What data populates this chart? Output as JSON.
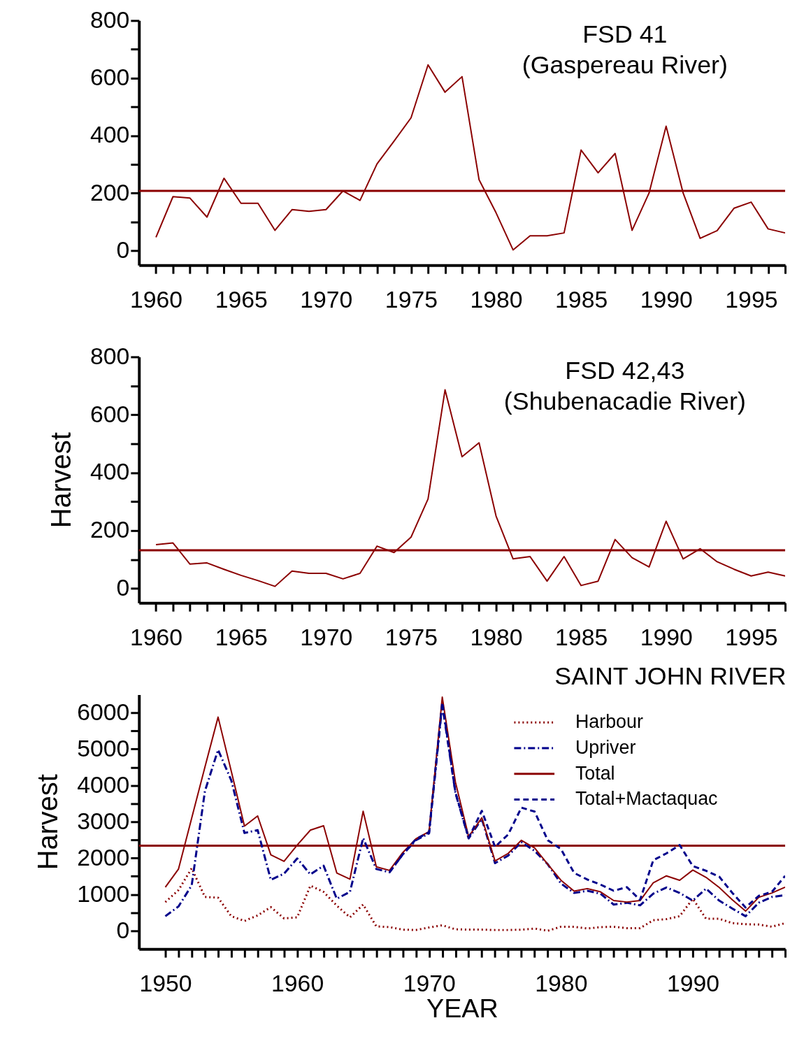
{
  "chart_data": [
    {
      "type": "line",
      "title": "FSD 41\n(Gaspereau River)",
      "x": [
        1960,
        1961,
        1962,
        1963,
        1964,
        1965,
        1966,
        1967,
        1968,
        1969,
        1970,
        1971,
        1972,
        1973,
        1974,
        1975,
        1976,
        1977,
        1978,
        1979,
        1980,
        1981,
        1982,
        1983,
        1984,
        1985,
        1986,
        1987,
        1988,
        1989,
        1990,
        1991,
        1992,
        1993,
        1994,
        1995,
        1996,
        1997
      ],
      "series": [
        {
          "color": "#8b0000",
          "line_style": "solid",
          "values": [
            47,
            188,
            183,
            117,
            252,
            165,
            165,
            71,
            143,
            137,
            143,
            208,
            175,
            302,
            381,
            462,
            646,
            551,
            605,
            247,
            132,
            3,
            52,
            52,
            62,
            350,
            271,
            338,
            71,
            201,
            433,
            201,
            43,
            70,
            148,
            169,
            76,
            62
          ]
        }
      ],
      "xlim": [
        1959,
        1997
      ],
      "ylim": [
        -50,
        800
      ],
      "xticks": [
        1960,
        {
          "value": 1961,
          "label": null
        },
        {
          "value": 1962,
          "label": null
        },
        {
          "value": 1963,
          "label": null
        },
        {
          "value": 1964,
          "label": null
        },
        1965,
        {
          "value": 1966,
          "label": null
        },
        {
          "value": 1967,
          "label": null
        },
        {
          "value": 1968,
          "label": null
        },
        {
          "value": 1969,
          "label": null
        },
        1970,
        {
          "value": 1971,
          "label": null
        },
        {
          "value": 1972,
          "label": null
        },
        {
          "value": 1973,
          "label": null
        },
        {
          "value": 1974,
          "label": null
        },
        1975,
        {
          "value": 1976,
          "label": null
        },
        {
          "value": 1977,
          "label": null
        },
        {
          "value": 1978,
          "label": null
        },
        {
          "value": 1979,
          "label": null
        },
        1980,
        {
          "value": 1981,
          "label": null
        },
        {
          "value": 1982,
          "label": null
        },
        {
          "value": 1983,
          "label": null
        },
        {
          "value": 1984,
          "label": null
        },
        1985,
        {
          "value": 1986,
          "label": null
        },
        {
          "value": 1987,
          "label": null
        },
        {
          "value": 1988,
          "label": null
        },
        {
          "value": 1989,
          "label": null
        },
        1990,
        {
          "value": 1991,
          "label": null
        },
        {
          "value": 1992,
          "label": null
        },
        {
          "value": 1993,
          "label": null
        },
        {
          "value": 1994,
          "label": null
        },
        1995,
        {
          "value": 1996,
          "label": null
        },
        {
          "value": 1997,
          "label": null
        }
      ],
      "yticks": [
        0,
        {
          "value": 100,
          "label": null
        },
        200,
        {
          "value": 300,
          "label": null
        },
        400,
        {
          "value": 500,
          "label": null
        },
        600,
        {
          "value": 700,
          "label": null
        },
        800
      ],
      "ref_lines": [
        {
          "axis": "y",
          "value": 208,
          "color": "#8b0000"
        }
      ],
      "grid": false,
      "legend": false
    },
    {
      "type": "line",
      "title": "FSD 42,43\n(Shubenacadie River)",
      "ylabel": "Harvest",
      "x": [
        1960,
        1961,
        1962,
        1963,
        1964,
        1965,
        1966,
        1967,
        1968,
        1969,
        1970,
        1971,
        1972,
        1973,
        1974,
        1975,
        1976,
        1977,
        1978,
        1979,
        1980,
        1981,
        1982,
        1983,
        1984,
        1985,
        1986,
        1987,
        1988,
        1989,
        1990,
        1991,
        1992,
        1993,
        1994,
        1995,
        1996,
        1997
      ],
      "series": [
        {
          "color": "#8b0000",
          "line_style": "solid",
          "values": [
            151,
            157,
            84,
            88,
            66,
            45,
            27,
            7,
            60,
            52,
            52,
            33,
            52,
            146,
            124,
            177,
            309,
            686,
            455,
            503,
            250,
            102,
            110,
            25,
            110,
            10,
            25,
            169,
            106,
            74,
            232,
            102,
            137,
            92,
            66,
            43,
            56,
            43
          ]
        }
      ],
      "xlim": [
        1959,
        1997
      ],
      "ylim": [
        -50,
        800
      ],
      "xticks": [
        1960,
        {
          "value": 1961,
          "label": null
        },
        {
          "value": 1962,
          "label": null
        },
        {
          "value": 1963,
          "label": null
        },
        {
          "value": 1964,
          "label": null
        },
        1965,
        {
          "value": 1966,
          "label": null
        },
        {
          "value": 1967,
          "label": null
        },
        {
          "value": 1968,
          "label": null
        },
        {
          "value": 1969,
          "label": null
        },
        1970,
        {
          "value": 1971,
          "label": null
        },
        {
          "value": 1972,
          "label": null
        },
        {
          "value": 1973,
          "label": null
        },
        {
          "value": 1974,
          "label": null
        },
        1975,
        {
          "value": 1976,
          "label": null
        },
        {
          "value": 1977,
          "label": null
        },
        {
          "value": 1978,
          "label": null
        },
        {
          "value": 1979,
          "label": null
        },
        1980,
        {
          "value": 1981,
          "label": null
        },
        {
          "value": 1982,
          "label": null
        },
        {
          "value": 1983,
          "label": null
        },
        {
          "value": 1984,
          "label": null
        },
        1985,
        {
          "value": 1986,
          "label": null
        },
        {
          "value": 1987,
          "label": null
        },
        {
          "value": 1988,
          "label": null
        },
        {
          "value": 1989,
          "label": null
        },
        1990,
        {
          "value": 1991,
          "label": null
        },
        {
          "value": 1992,
          "label": null
        },
        {
          "value": 1993,
          "label": null
        },
        {
          "value": 1994,
          "label": null
        },
        1995,
        {
          "value": 1996,
          "label": null
        },
        {
          "value": 1997,
          "label": null
        }
      ],
      "yticks": [
        0,
        {
          "value": 100,
          "label": null
        },
        200,
        {
          "value": 300,
          "label": null
        },
        400,
        {
          "value": 500,
          "label": null
        },
        600,
        {
          "value": 700,
          "label": null
        },
        800
      ],
      "ref_lines": [
        {
          "axis": "y",
          "value": 132,
          "color": "#8b0000"
        }
      ],
      "grid": false,
      "legend": false
    },
    {
      "type": "line",
      "title": "SAINT JOHN RIVER",
      "xlabel": "YEAR",
      "ylabel": "Harvest",
      "x": [
        1950,
        1951,
        1952,
        1953,
        1954,
        1955,
        1956,
        1957,
        1958,
        1959,
        1960,
        1961,
        1962,
        1963,
        1964,
        1965,
        1966,
        1967,
        1968,
        1969,
        1970,
        1971,
        1972,
        1973,
        1974,
        1975,
        1976,
        1977,
        1978,
        1979,
        1980,
        1981,
        1982,
        1983,
        1984,
        1985,
        1986,
        1987,
        1988,
        1989,
        1990,
        1991,
        1992,
        1993,
        1994,
        1995,
        1996,
        1997
      ],
      "series": [
        {
          "name": "Harbour",
          "color": "#8b0000",
          "line_style": "dotted",
          "values": [
            790,
            1120,
            1720,
            930,
            910,
            400,
            270,
            420,
            650,
            340,
            370,
            1240,
            1070,
            690,
            370,
            720,
            120,
            100,
            30,
            20,
            90,
            150,
            40,
            30,
            30,
            20,
            20,
            30,
            60,
            0,
            110,
            110,
            60,
            100,
            110,
            70,
            70,
            290,
            320,
            400,
            880,
            330,
            330,
            210,
            180,
            170,
            110,
            210
          ]
        },
        {
          "name": "Upriver",
          "color": "#00008b",
          "line_style": "dashdot",
          "values": [
            400,
            670,
            1250,
            3840,
            4980,
            4140,
            2690,
            2770,
            1400,
            1570,
            1990,
            1550,
            1790,
            880,
            1070,
            2550,
            1700,
            1610,
            2100,
            2490,
            2680,
            6220,
            3790,
            2540,
            3080,
            1860,
            2070,
            2440,
            2200,
            1830,
            1300,
            1040,
            1100,
            1020,
            720,
            770,
            700,
            1020,
            1190,
            1040,
            830,
            1160,
            830,
            610,
            400,
            770,
            930,
            980
          ]
        },
        {
          "name": "Total",
          "color": "#8b0000",
          "line_style": "solid",
          "values": [
            1200,
            1700,
            3100,
            4500,
            5880,
            4390,
            2880,
            3160,
            2090,
            1910,
            2360,
            2770,
            2890,
            1590,
            1420,
            3290,
            1760,
            1660,
            2150,
            2530,
            2730,
            6430,
            4090,
            2590,
            3110,
            1920,
            2130,
            2490,
            2280,
            1830,
            1390,
            1090,
            1160,
            1070,
            830,
            790,
            830,
            1320,
            1510,
            1390,
            1670,
            1470,
            1190,
            850,
            540,
            920,
            1040,
            1200
          ]
        },
        {
          "name": "Total+Mactaquac",
          "color": "#00008b",
          "line_style": "dashed",
          "x": [
            1967,
            1968,
            1969,
            1970,
            1971,
            1972,
            1973,
            1974,
            1975,
            1976,
            1977,
            1978,
            1979,
            1980,
            1981,
            1982,
            1983,
            1984,
            1985,
            1986,
            1987,
            1988,
            1989,
            1990,
            1991,
            1992,
            1993,
            1994,
            1995,
            1996,
            1997
          ],
          "values": [
            1610,
            2100,
            2520,
            2710,
            6280,
            3810,
            2550,
            3300,
            2310,
            2650,
            3390,
            3280,
            2490,
            2250,
            1590,
            1410,
            1270,
            1100,
            1200,
            850,
            1940,
            2130,
            2360,
            1780,
            1650,
            1490,
            1040,
            640,
            960,
            1070,
            1510
          ]
        }
      ],
      "xlim": [
        1948,
        1997
      ],
      "ylim": [
        -500,
        6500
      ],
      "xticks": [
        1950,
        {
          "value": 1951,
          "label": null
        },
        {
          "value": 1952,
          "label": null
        },
        {
          "value": 1953,
          "label": null
        },
        {
          "value": 1954,
          "label": null
        },
        {
          "value": 1955,
          "label": null
        },
        {
          "value": 1956,
          "label": null
        },
        {
          "value": 1957,
          "label": null
        },
        {
          "value": 1958,
          "label": null
        },
        {
          "value": 1959,
          "label": null
        },
        1960,
        {
          "value": 1961,
          "label": null
        },
        {
          "value": 1962,
          "label": null
        },
        {
          "value": 1963,
          "label": null
        },
        {
          "value": 1964,
          "label": null
        },
        {
          "value": 1965,
          "label": null
        },
        {
          "value": 1966,
          "label": null
        },
        {
          "value": 1967,
          "label": null
        },
        {
          "value": 1968,
          "label": null
        },
        {
          "value": 1969,
          "label": null
        },
        1970,
        {
          "value": 1971,
          "label": null
        },
        {
          "value": 1972,
          "label": null
        },
        {
          "value": 1973,
          "label": null
        },
        {
          "value": 1974,
          "label": null
        },
        {
          "value": 1975,
          "label": null
        },
        {
          "value": 1976,
          "label": null
        },
        {
          "value": 1977,
          "label": null
        },
        {
          "value": 1978,
          "label": null
        },
        {
          "value": 1979,
          "label": null
        },
        1980,
        {
          "value": 1981,
          "label": null
        },
        {
          "value": 1982,
          "label": null
        },
        {
          "value": 1983,
          "label": null
        },
        {
          "value": 1984,
          "label": null
        },
        {
          "value": 1985,
          "label": null
        },
        {
          "value": 1986,
          "label": null
        },
        {
          "value": 1987,
          "label": null
        },
        {
          "value": 1988,
          "label": null
        },
        {
          "value": 1989,
          "label": null
        },
        1990,
        {
          "value": 1991,
          "label": null
        },
        {
          "value": 1992,
          "label": null
        },
        {
          "value": 1993,
          "label": null
        },
        {
          "value": 1994,
          "label": null
        },
        {
          "value": 1995,
          "label": null
        },
        {
          "value": 1996,
          "label": null
        },
        {
          "value": 1997,
          "label": null
        }
      ],
      "yticks": [
        0,
        {
          "value": 500,
          "label": null
        },
        1000,
        {
          "value": 1500,
          "label": null
        },
        2000,
        {
          "value": 2500,
          "label": null
        },
        3000,
        {
          "value": 3500,
          "label": null
        },
        4000,
        {
          "value": 4500,
          "label": null
        },
        5000,
        {
          "value": 5500,
          "label": null
        },
        6000
      ],
      "ref_lines": [
        {
          "axis": "y",
          "value": 2340,
          "color": "#8b0000"
        }
      ],
      "grid": false,
      "legend": "top right"
    }
  ]
}
